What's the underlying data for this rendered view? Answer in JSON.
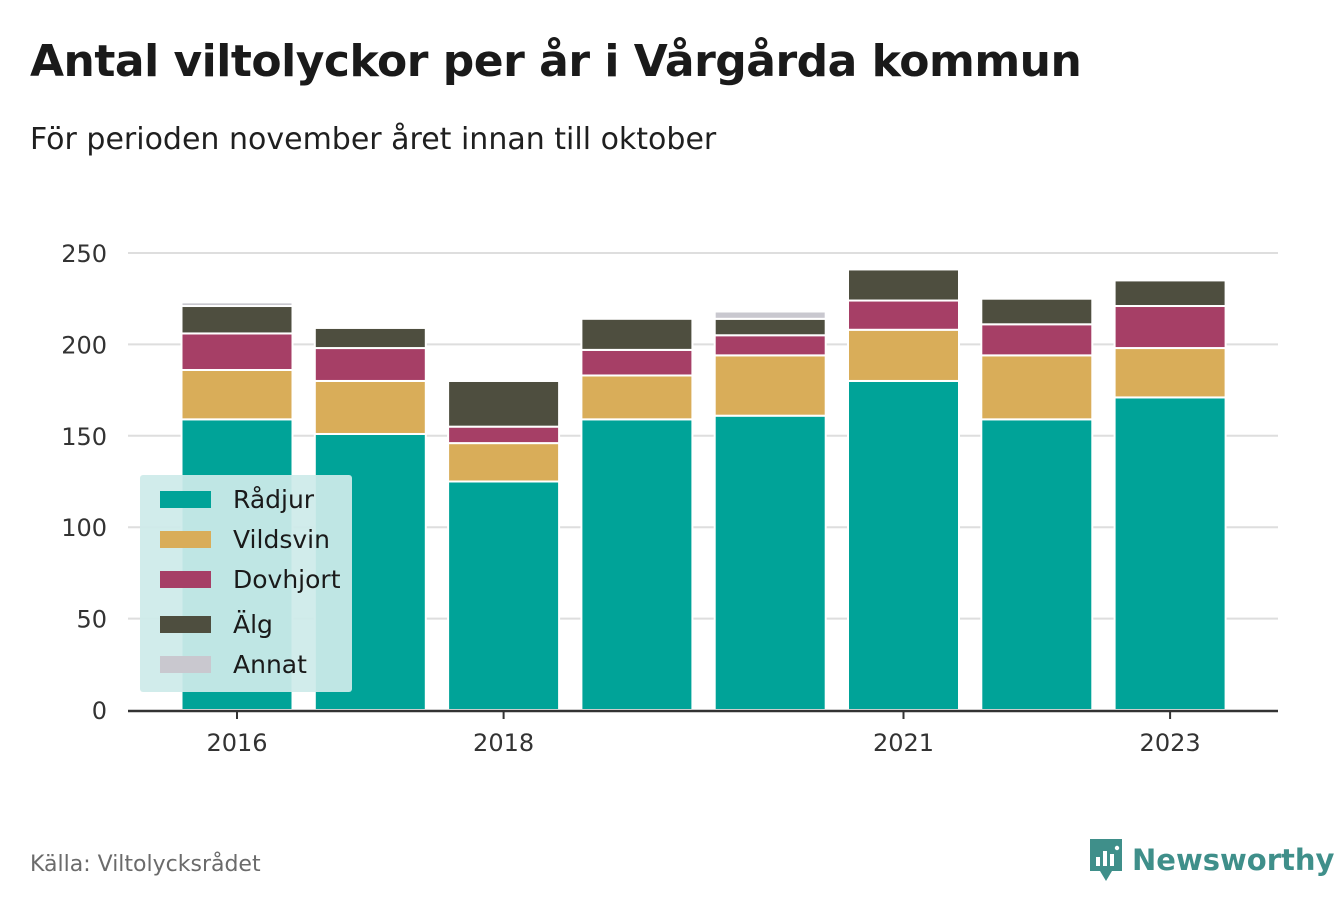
{
  "title": "Antal viltolyckor per år i Vårgårda kommun",
  "subtitle": "För perioden november året innan till oktober",
  "source": "Källa: Viltolycksrådet",
  "brand": "Newsworthy",
  "chart_data": {
    "type": "bar",
    "stacked": true,
    "categories": [
      "2016",
      "2017",
      "2018",
      "2019",
      "2020",
      "2021",
      "2022",
      "2023"
    ],
    "x_tick_labels": [
      "2016",
      "2018",
      "2021",
      "2023"
    ],
    "y_ticks": [
      "0",
      "50",
      "100",
      "150",
      "200",
      "250"
    ],
    "ylim": [
      0,
      250
    ],
    "grid": true,
    "legend_position": "bottom-left",
    "series": [
      {
        "name": "Rådjur",
        "color": "#00a398",
        "values": [
          159,
          151,
          125,
          159,
          161,
          180,
          159,
          171
        ]
      },
      {
        "name": "Vildsvin",
        "color": "#d9ad59",
        "values": [
          27,
          29,
          21,
          24,
          33,
          28,
          35,
          27
        ]
      },
      {
        "name": "Dovhjort",
        "color": "#a63f66",
        "values": [
          20,
          18,
          9,
          14,
          11,
          16,
          17,
          23
        ]
      },
      {
        "name": "Älg",
        "color": "#4e4e3f",
        "values": [
          15,
          11,
          25,
          17,
          9,
          17,
          14,
          14
        ]
      },
      {
        "name": "Annat",
        "color": "#c9c8cf",
        "values": [
          2,
          0,
          1,
          0,
          4,
          0,
          0,
          0
        ]
      }
    ]
  }
}
